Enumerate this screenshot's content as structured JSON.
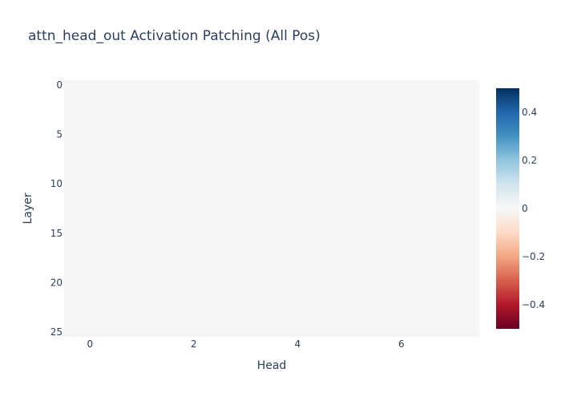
{
  "chart_data": {
    "type": "heatmap",
    "title": "attn_head_out Activation Patching (All Pos)",
    "xlabel": "Head",
    "ylabel": "Layer",
    "x_range": [
      -0.5,
      7.5
    ],
    "y_range": [
      25.5,
      -0.5
    ],
    "x_ticks": [
      "0",
      "2",
      "4",
      "6"
    ],
    "y_ticks": [
      "0",
      "5",
      "10",
      "15",
      "20",
      "25"
    ],
    "n_heads": 8,
    "n_layers": 26,
    "cell_value": 0,
    "cell_color": "#f6f6f6",
    "colorbar": {
      "range": [
        -0.5,
        0.5
      ],
      "ticks": [
        "0.4",
        "0.2",
        "0",
        "−0.2",
        "−0.4"
      ],
      "colorscale": "RdBu",
      "colors": [
        "#67001f",
        "#b2182b",
        "#d6604d",
        "#f4a582",
        "#fddbc7",
        "#f7f7f7",
        "#d1e5f0",
        "#92c5de",
        "#4393c3",
        "#2166ac",
        "#053061"
      ]
    }
  }
}
